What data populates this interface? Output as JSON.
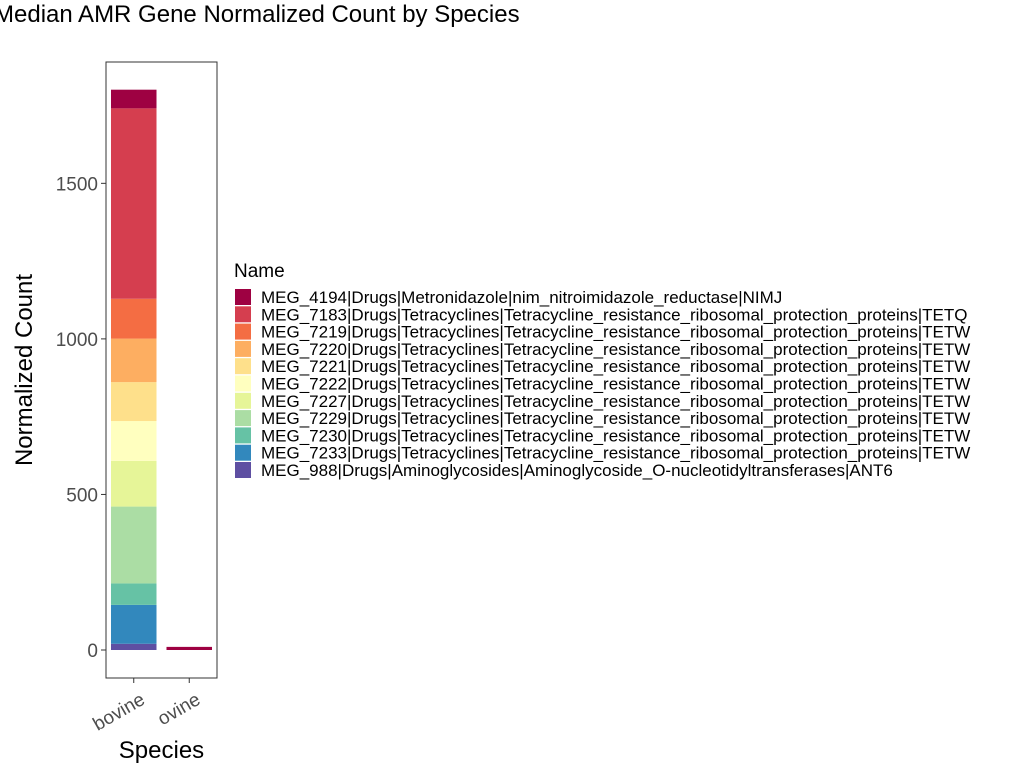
{
  "chart_data": {
    "type": "bar",
    "stacked": true,
    "title": "Median AMR Gene Normalized Count by Species",
    "xlabel": "Species",
    "ylabel": "Normalized Count",
    "ylim": [
      -90,
      1890
    ],
    "yticks": [
      0,
      500,
      1000,
      1500
    ],
    "categories": [
      "bovine",
      "ovine"
    ],
    "legend_title": "Name",
    "legend_position": "right",
    "grid": false,
    "series": [
      {
        "name": "MEG_4194|Drugs|Metronidazole|nim_nitroimidazole_reductase|NIMJ",
        "color": "#9E0142",
        "values": [
          60,
          10
        ]
      },
      {
        "name": "MEG_7183|Drugs|Tetracyclines|Tetracycline_resistance_ribosomal_protection_proteins|TETQ",
        "color": "#D53E4F",
        "values": [
          612,
          0
        ]
      },
      {
        "name": "MEG_7219|Drugs|Tetracyclines|Tetracycline_resistance_ribosomal_protection_proteins|TETW",
        "color": "#F46D43",
        "values": [
          128,
          0
        ]
      },
      {
        "name": "MEG_7220|Drugs|Tetracyclines|Tetracycline_resistance_ribosomal_protection_proteins|TETW",
        "color": "#FDAE61",
        "values": [
          140,
          0
        ]
      },
      {
        "name": "MEG_7221|Drugs|Tetracyclines|Tetracycline_resistance_ribosomal_protection_proteins|TETW",
        "color": "#FEE08B",
        "values": [
          125,
          0
        ]
      },
      {
        "name": "MEG_7222|Drugs|Tetracyclines|Tetracycline_resistance_ribosomal_protection_proteins|TETW",
        "color": "#FFFFBF",
        "values": [
          128,
          0
        ]
      },
      {
        "name": "MEG_7227|Drugs|Tetracyclines|Tetracycline_resistance_ribosomal_protection_proteins|TETW",
        "color": "#E6F598",
        "values": [
          147,
          0
        ]
      },
      {
        "name": "MEG_7229|Drugs|Tetracyclines|Tetracycline_resistance_ribosomal_protection_proteins|TETW",
        "color": "#ABDDA4",
        "values": [
          247,
          0
        ]
      },
      {
        "name": "MEG_7230|Drugs|Tetracyclines|Tetracycline_resistance_ribosomal_protection_proteins|TETW",
        "color": "#66C2A5",
        "values": [
          69,
          0
        ]
      },
      {
        "name": "MEG_7233|Drugs|Tetracyclines|Tetracycline_resistance_ribosomal_protection_proteins|TETW",
        "color": "#3288BD",
        "values": [
          125,
          0
        ]
      },
      {
        "name": "MEG_988|Drugs|Aminoglycosides|Aminoglycoside_O-nucleotidyltransferases|ANT6",
        "color": "#5E4FA2",
        "values": [
          20,
          0
        ]
      }
    ]
  }
}
